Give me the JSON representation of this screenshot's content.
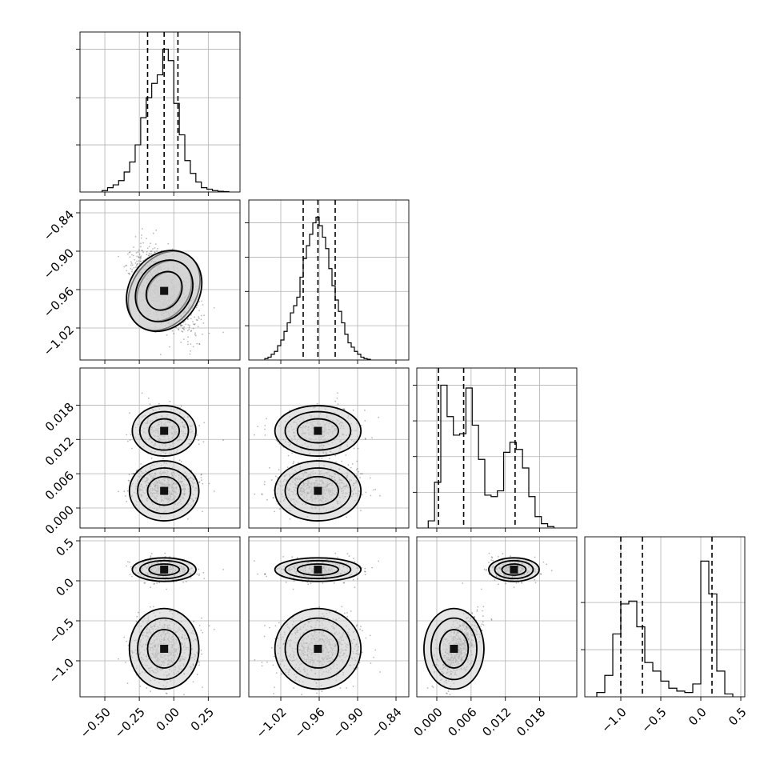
{
  "chart_data": {
    "type": "corner",
    "parameters": [
      {
        "range": [
          -0.68,
          0.48
        ],
        "ticks": [
          -0.5,
          -0.25,
          0.0,
          0.25
        ],
        "tick_labels": [
          "−0.50",
          "−0.25",
          "0.00",
          "0.25"
        ],
        "quantiles": [
          -0.19,
          -0.07,
          0.03
        ]
      },
      {
        "range": [
          -1.07,
          -0.82
        ],
        "ticks": [
          -1.02,
          -0.96,
          -0.9,
          -0.84
        ],
        "tick_labels": [
          "−1.02",
          "−0.96",
          "−0.90",
          "−0.84"
        ],
        "quantiles": [
          -0.985,
          -0.962,
          -0.935
        ]
      },
      {
        "range": [
          -0.0035,
          0.0245
        ],
        "ticks": [
          0.0,
          0.006,
          0.012,
          0.018
        ],
        "tick_labels": [
          "0.000",
          "0.006",
          "0.012",
          "0.018"
        ],
        "quantiles": [
          0.0003,
          0.0047,
          0.0137
        ]
      },
      {
        "range": [
          -1.45,
          0.55
        ],
        "ticks": [
          -1.0,
          -0.5,
          0.0,
          0.5
        ],
        "tick_labels": [
          "−1.0",
          "−0.5",
          "0.0",
          "0.5"
        ],
        "quantiles": [
          -1.0,
          -0.73,
          0.14
        ]
      }
    ],
    "histograms": [
      {
        "bins": [
          -0.52,
          -0.48,
          -0.44,
          -0.4,
          -0.36,
          -0.32,
          -0.28,
          -0.24,
          -0.2,
          -0.16,
          -0.12,
          -0.08,
          -0.04,
          0.0,
          0.04,
          0.08,
          0.12,
          0.16,
          0.2,
          0.24,
          0.28,
          0.32,
          0.36,
          0.4
        ],
        "counts": [
          0.01,
          0.03,
          0.05,
          0.08,
          0.14,
          0.21,
          0.33,
          0.52,
          0.66,
          0.76,
          0.82,
          1.0,
          0.92,
          0.62,
          0.4,
          0.22,
          0.13,
          0.07,
          0.03,
          0.02,
          0.01,
          0.005,
          0.003
        ]
      },
      {
        "bins": [
          -1.045,
          -1.04,
          -1.035,
          -1.03,
          -1.025,
          -1.02,
          -1.015,
          -1.01,
          -1.005,
          -1.0,
          -0.995,
          -0.99,
          -0.985,
          -0.98,
          -0.975,
          -0.97,
          -0.965,
          -0.96,
          -0.955,
          -0.95,
          -0.945,
          -0.94,
          -0.935,
          -0.93,
          -0.925,
          -0.92,
          -0.915,
          -0.91,
          -0.905,
          -0.9,
          -0.895,
          -0.89,
          -0.885,
          -0.88
        ],
        "counts": [
          0.01,
          0.02,
          0.04,
          0.06,
          0.1,
          0.14,
          0.2,
          0.26,
          0.33,
          0.38,
          0.44,
          0.58,
          0.71,
          0.8,
          0.88,
          0.96,
          1.0,
          0.94,
          0.86,
          0.78,
          0.64,
          0.52,
          0.42,
          0.34,
          0.26,
          0.18,
          0.12,
          0.09,
          0.06,
          0.04,
          0.02,
          0.01,
          0.005
        ]
      },
      {
        "bins": [
          -0.0015,
          -0.0004,
          0.0007,
          0.0018,
          0.0029,
          0.004,
          0.0051,
          0.0062,
          0.0073,
          0.0084,
          0.0095,
          0.0106,
          0.0117,
          0.0128,
          0.0139,
          0.015,
          0.0161,
          0.0172,
          0.0183,
          0.0194,
          0.0205
        ],
        "counts": [
          0.05,
          0.32,
          1.0,
          0.78,
          0.65,
          0.66,
          0.98,
          0.72,
          0.48,
          0.23,
          0.22,
          0.26,
          0.53,
          0.6,
          0.55,
          0.42,
          0.22,
          0.08,
          0.03,
          0.01
        ]
      },
      {
        "bins": [
          -1.3,
          -1.2,
          -1.1,
          -1.0,
          -0.9,
          -0.8,
          -0.7,
          -0.6,
          -0.5,
          -0.4,
          -0.3,
          -0.2,
          -0.1,
          0.0,
          0.1,
          0.2,
          0.3,
          0.4
        ],
        "counts": [
          0.03,
          0.15,
          0.44,
          0.65,
          0.67,
          0.49,
          0.24,
          0.18,
          0.11,
          0.06,
          0.04,
          0.03,
          0.09,
          0.95,
          0.72,
          0.18,
          0.02
        ]
      }
    ],
    "hist_ticks": [
      {
        "ticks": [
          0.33,
          0.66,
          1.0
        ]
      },
      {
        "ticks": [
          0.24,
          0.48,
          0.72,
          0.96
        ]
      },
      {
        "ticks": [
          0.25,
          0.5,
          0.75,
          1.0
        ]
      },
      {
        "ticks": [
          0.33,
          0.66
        ]
      }
    ],
    "clusters": [
      {
        "center": [
          -0.07,
          -0.962,
          0.0135,
          0.14
        ],
        "spread": [
          0.11,
          0.032,
          0.0021,
          0.07
        ],
        "weight": 0.32
      },
      {
        "center": [
          -0.07,
          -0.962,
          0.003,
          -0.85
        ],
        "spread": [
          0.12,
          0.032,
          0.0025,
          0.24
        ],
        "weight": 0.68
      }
    ]
  },
  "colors": {
    "line": "#000000",
    "grid": "#b0b0b0",
    "density": "#333333"
  }
}
